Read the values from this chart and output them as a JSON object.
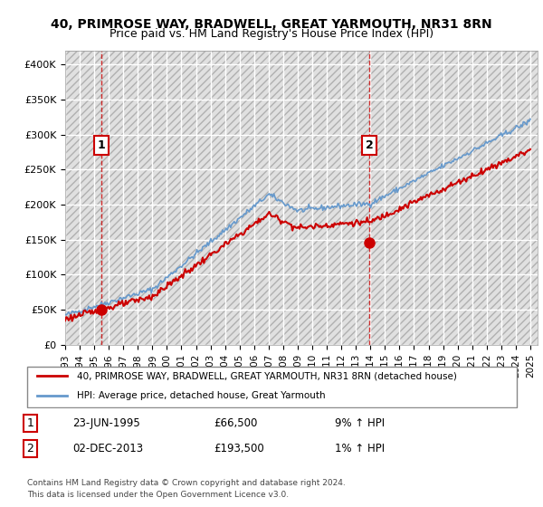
{
  "title": "40, PRIMROSE WAY, BRADWELL, GREAT YARMOUTH, NR31 8RN",
  "subtitle": "Price paid vs. HM Land Registry's House Price Index (HPI)",
  "ylim": [
    0,
    420000
  ],
  "yticks": [
    0,
    50000,
    100000,
    150000,
    200000,
    250000,
    300000,
    350000,
    400000
  ],
  "ytick_labels": [
    "£0",
    "£50K",
    "£100K",
    "£150K",
    "£200K",
    "£250K",
    "£300K",
    "£350K",
    "£400K"
  ],
  "xlim_start": 1993.0,
  "xlim_end": 2025.5,
  "xticks": [
    1993,
    1994,
    1995,
    1996,
    1997,
    1998,
    1999,
    2000,
    2001,
    2002,
    2003,
    2004,
    2005,
    2006,
    2007,
    2008,
    2009,
    2010,
    2011,
    2012,
    2013,
    2014,
    2015,
    2016,
    2017,
    2018,
    2019,
    2020,
    2021,
    2022,
    2023,
    2024,
    2025
  ],
  "transaction1_x": 1995.478,
  "transaction1_y": 66500,
  "transaction2_x": 2013.917,
  "transaction2_y": 193500,
  "line_color_property": "#cc0000",
  "line_color_hpi": "#6699cc",
  "marker_color": "#cc0000",
  "legend_line1": "40, PRIMROSE WAY, BRADWELL, GREAT YARMOUTH, NR31 8RN (detached house)",
  "legend_line2": "HPI: Average price, detached house, Great Yarmouth",
  "note_row1": "Contains HM Land Registry data © Crown copyright and database right 2024.",
  "note_row2": "This data is licensed under the Open Government Licence v3.0.",
  "table_row1_date": "23-JUN-1995",
  "table_row1_price": "£66,500",
  "table_row1_hpi": "9% ↑ HPI",
  "table_row2_date": "02-DEC-2013",
  "table_row2_price": "£193,500",
  "table_row2_hpi": "1% ↑ HPI"
}
